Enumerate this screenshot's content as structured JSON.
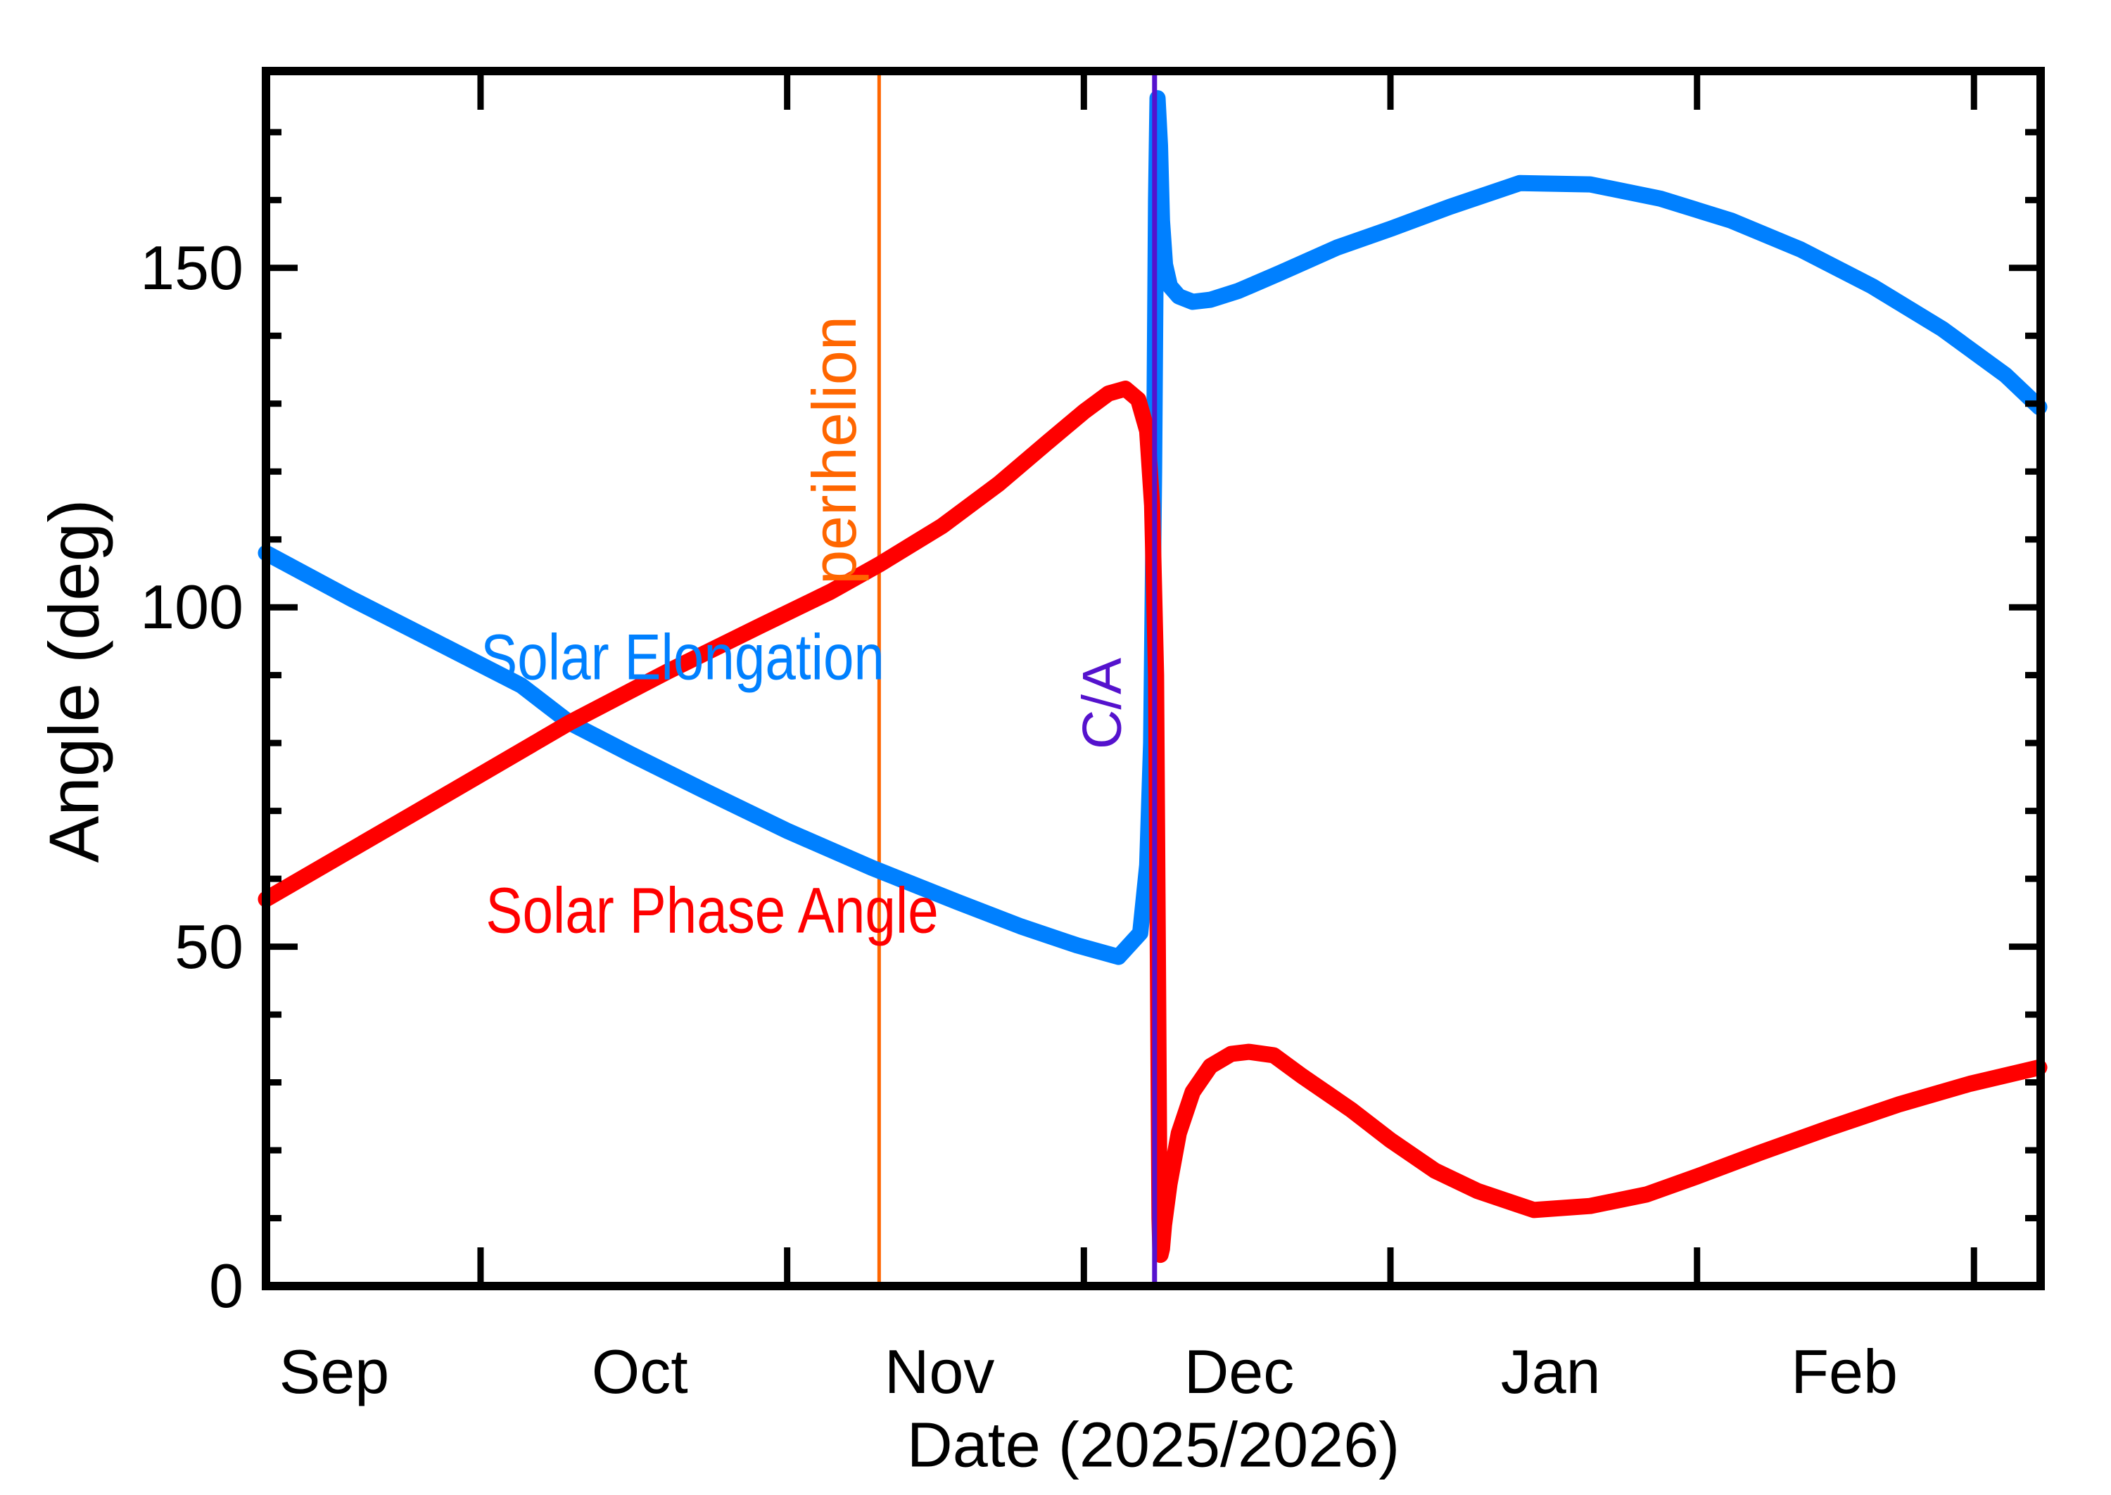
{
  "chart": {
    "y_title": "Angle (deg)",
    "x_title": "Date (2025/2026)",
    "labels": {
      "elongation": "Solar Elongation",
      "phase": "Solar Phase Angle",
      "perihelion": "perihelion",
      "close_approach": "C/A"
    }
  },
  "chart_data": {
    "type": "line",
    "title": "",
    "xlabel": "Date (2025/2026)",
    "ylabel": "Angle (deg)",
    "x_unit": "days since 2025-09-01",
    "x_range_days": [
      8.3,
      187.7
    ],
    "ylim": [
      0,
      179
    ],
    "grid": false,
    "legend_position": "inline-labels",
    "colors": {
      "elongation": "#0080FF",
      "phase": "#FF0000",
      "perihelion_line": "#FF6600",
      "close_approach_line": "#5512CD",
      "axis": "#000000",
      "background": "#FFFFFF"
    },
    "y_axis": {
      "labeled_ticks": [
        0,
        50,
        100,
        150
      ],
      "minor_tick_step_deg": 10,
      "max_minor_tick_deg": 170
    },
    "x_axis": {
      "tick_days": [
        30,
        61,
        91,
        122,
        153,
        181
      ],
      "tick_dates": [
        "2025-10-01",
        "2025-11-01",
        "2025-12-01",
        "2026-01-01",
        "2026-02-01",
        "2026-03-01"
      ],
      "months": [
        {
          "label": "Sep",
          "day": 15.2
        },
        {
          "label": "Oct",
          "day": 46.1
        },
        {
          "label": "Nov",
          "day": 76.4
        },
        {
          "label": "Dec",
          "day": 106.7
        },
        {
          "label": "Jan",
          "day": 138.2
        },
        {
          "label": "Feb",
          "day": 167.9
        }
      ]
    },
    "events": [
      {
        "name": "perihelion",
        "day": 70.3,
        "approx_date": "2025-11-10",
        "color": "#FF6600"
      },
      {
        "name": "C/A",
        "day": 98.15,
        "approx_date": "2025-12-07",
        "color": "#5512CD"
      }
    ],
    "series": [
      {
        "name": "Solar Elongation",
        "color": "#0080FF",
        "points": [
          [
            8.3,
            108
          ],
          [
            17,
            101.2
          ],
          [
            25.5,
            94.9
          ],
          [
            34.1,
            88.5
          ],
          [
            39,
            83
          ],
          [
            45.4,
            78.2
          ],
          [
            52.6,
            73
          ],
          [
            61.1,
            67
          ],
          [
            69.6,
            61.6
          ],
          [
            78.2,
            56.6
          ],
          [
            84.6,
            53
          ],
          [
            90.3,
            50.2
          ],
          [
            94.5,
            48.5
          ],
          [
            96.7,
            52
          ],
          [
            97.4,
            62
          ],
          [
            97.8,
            80
          ],
          [
            98.1,
            120
          ],
          [
            98.3,
            160
          ],
          [
            98.45,
            175
          ],
          [
            98.7,
            168
          ],
          [
            98.9,
            157
          ],
          [
            99.2,
            150.5
          ],
          [
            99.7,
            147.3
          ],
          [
            100.6,
            145.8
          ],
          [
            102,
            145
          ],
          [
            103.8,
            145.3
          ],
          [
            106.6,
            146.6
          ],
          [
            110.9,
            149.3
          ],
          [
            116.6,
            153
          ],
          [
            122.1,
            155.8
          ],
          [
            128,
            159
          ],
          [
            135.1,
            162.5
          ],
          [
            142.2,
            162.3
          ],
          [
            149.3,
            160.2
          ],
          [
            156.4,
            157
          ],
          [
            163.5,
            152.7
          ],
          [
            170.7,
            147.3
          ],
          [
            177.8,
            141
          ],
          [
            184.2,
            134.2
          ],
          [
            187.6,
            129.5
          ]
        ]
      },
      {
        "name": "Solar Phase Angle",
        "color": "#FF0000",
        "points": [
          [
            8.3,
            57
          ],
          [
            23.7,
            70
          ],
          [
            39,
            83
          ],
          [
            49,
            90.6
          ],
          [
            58.2,
            97.2
          ],
          [
            65.4,
            102.3
          ],
          [
            70.3,
            106.3
          ],
          [
            76.7,
            112
          ],
          [
            82.4,
            118.2
          ],
          [
            87.4,
            124.4
          ],
          [
            91,
            128.8
          ],
          [
            93.5,
            131.5
          ],
          [
            95.2,
            132.2
          ],
          [
            96.5,
            130.6
          ],
          [
            97.4,
            126
          ],
          [
            97.9,
            115
          ],
          [
            98.3,
            90
          ],
          [
            98.5,
            45
          ],
          [
            98.65,
            10
          ],
          [
            98.75,
            4.6
          ],
          [
            98.9,
            5.5
          ],
          [
            99.1,
            9
          ],
          [
            99.65,
            15
          ],
          [
            100.6,
            22.5
          ],
          [
            102,
            28.6
          ],
          [
            103.8,
            32.4
          ],
          [
            105.9,
            34.2
          ],
          [
            107.7,
            34.5
          ],
          [
            110.2,
            34
          ],
          [
            113,
            31
          ],
          [
            118,
            26
          ],
          [
            122,
            21.5
          ],
          [
            126.5,
            17
          ],
          [
            130.8,
            14
          ],
          [
            136.5,
            11.2
          ],
          [
            142.2,
            11.8
          ],
          [
            147.9,
            13.5
          ],
          [
            153.1,
            16.2
          ],
          [
            159.3,
            19.6
          ],
          [
            166.4,
            23.3
          ],
          [
            173.5,
            26.8
          ],
          [
            180.6,
            29.8
          ],
          [
            187.6,
            32.2
          ]
        ]
      }
    ]
  }
}
